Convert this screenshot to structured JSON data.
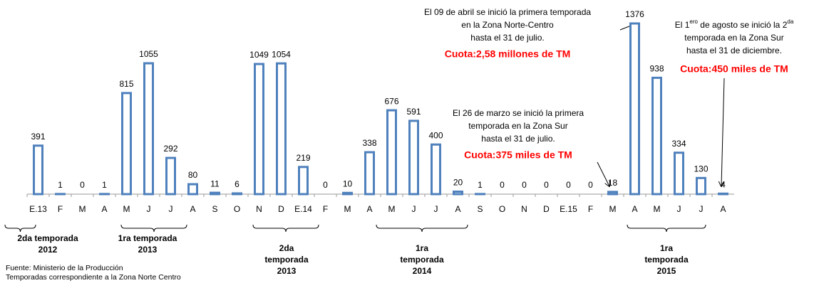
{
  "chart_data": {
    "type": "bar",
    "categories": [
      "E.13",
      "F",
      "M",
      "A",
      "M",
      "J",
      "J",
      "A",
      "S",
      "O",
      "N",
      "D",
      "E.14",
      "F",
      "M",
      "A",
      "M",
      "J",
      "J",
      "A",
      "S",
      "O",
      "N",
      "D",
      "E.15",
      "F",
      "M",
      "A",
      "M",
      "J",
      "J",
      "A"
    ],
    "values": [
      391,
      1,
      0,
      1,
      815,
      1055,
      292,
      80,
      11,
      6,
      1049,
      1054,
      219,
      0,
      10,
      338,
      676,
      591,
      400,
      20,
      1,
      0,
      0,
      0,
      0,
      0,
      18,
      1376,
      938,
      334,
      130,
      4
    ],
    "color": "#4f81bd",
    "annotations": [
      {
        "lines": [
          [
            "El 09 de abril se inició la primera temporada"
          ],
          [
            "en la Zona  Norte-Centro"
          ],
          [
            "hasta el 31 de julio."
          ]
        ],
        "quota": "Cuota:2,58 millones de TM"
      },
      {
        "lines": [
          [
            "El 26 de marzo se inició la primera"
          ],
          [
            "temporada en la Zona Sur"
          ],
          [
            "hasta el 31 de julio."
          ]
        ],
        "quota": "Cuota:375 miles de TM"
      },
      {
        "lines": [
          [
            "El 1",
            "ero",
            " de agosto se inició la 2",
            "da"
          ],
          [
            "temporada en la Zona  Sur"
          ],
          [
            "hasta el 31 de diciembre."
          ]
        ],
        "quota": "Cuota:450 miles de TM"
      }
    ],
    "seasons": [
      {
        "lines": [
          "2da  temporada",
          "2012"
        ]
      },
      {
        "lines": [
          "1ra  temporada",
          "2013"
        ]
      },
      {
        "lines": [
          "2da",
          "temporada",
          "2013"
        ]
      },
      {
        "lines": [
          "1ra",
          "temporada",
          "2014"
        ]
      },
      {
        "lines": [
          "1ra",
          "temporada",
          "2015"
        ]
      }
    ],
    "footnotes": [
      "Fuente: Ministerio de la Producción",
      "Temporadas correspondiente a la Zona Norte Centro"
    ]
  }
}
